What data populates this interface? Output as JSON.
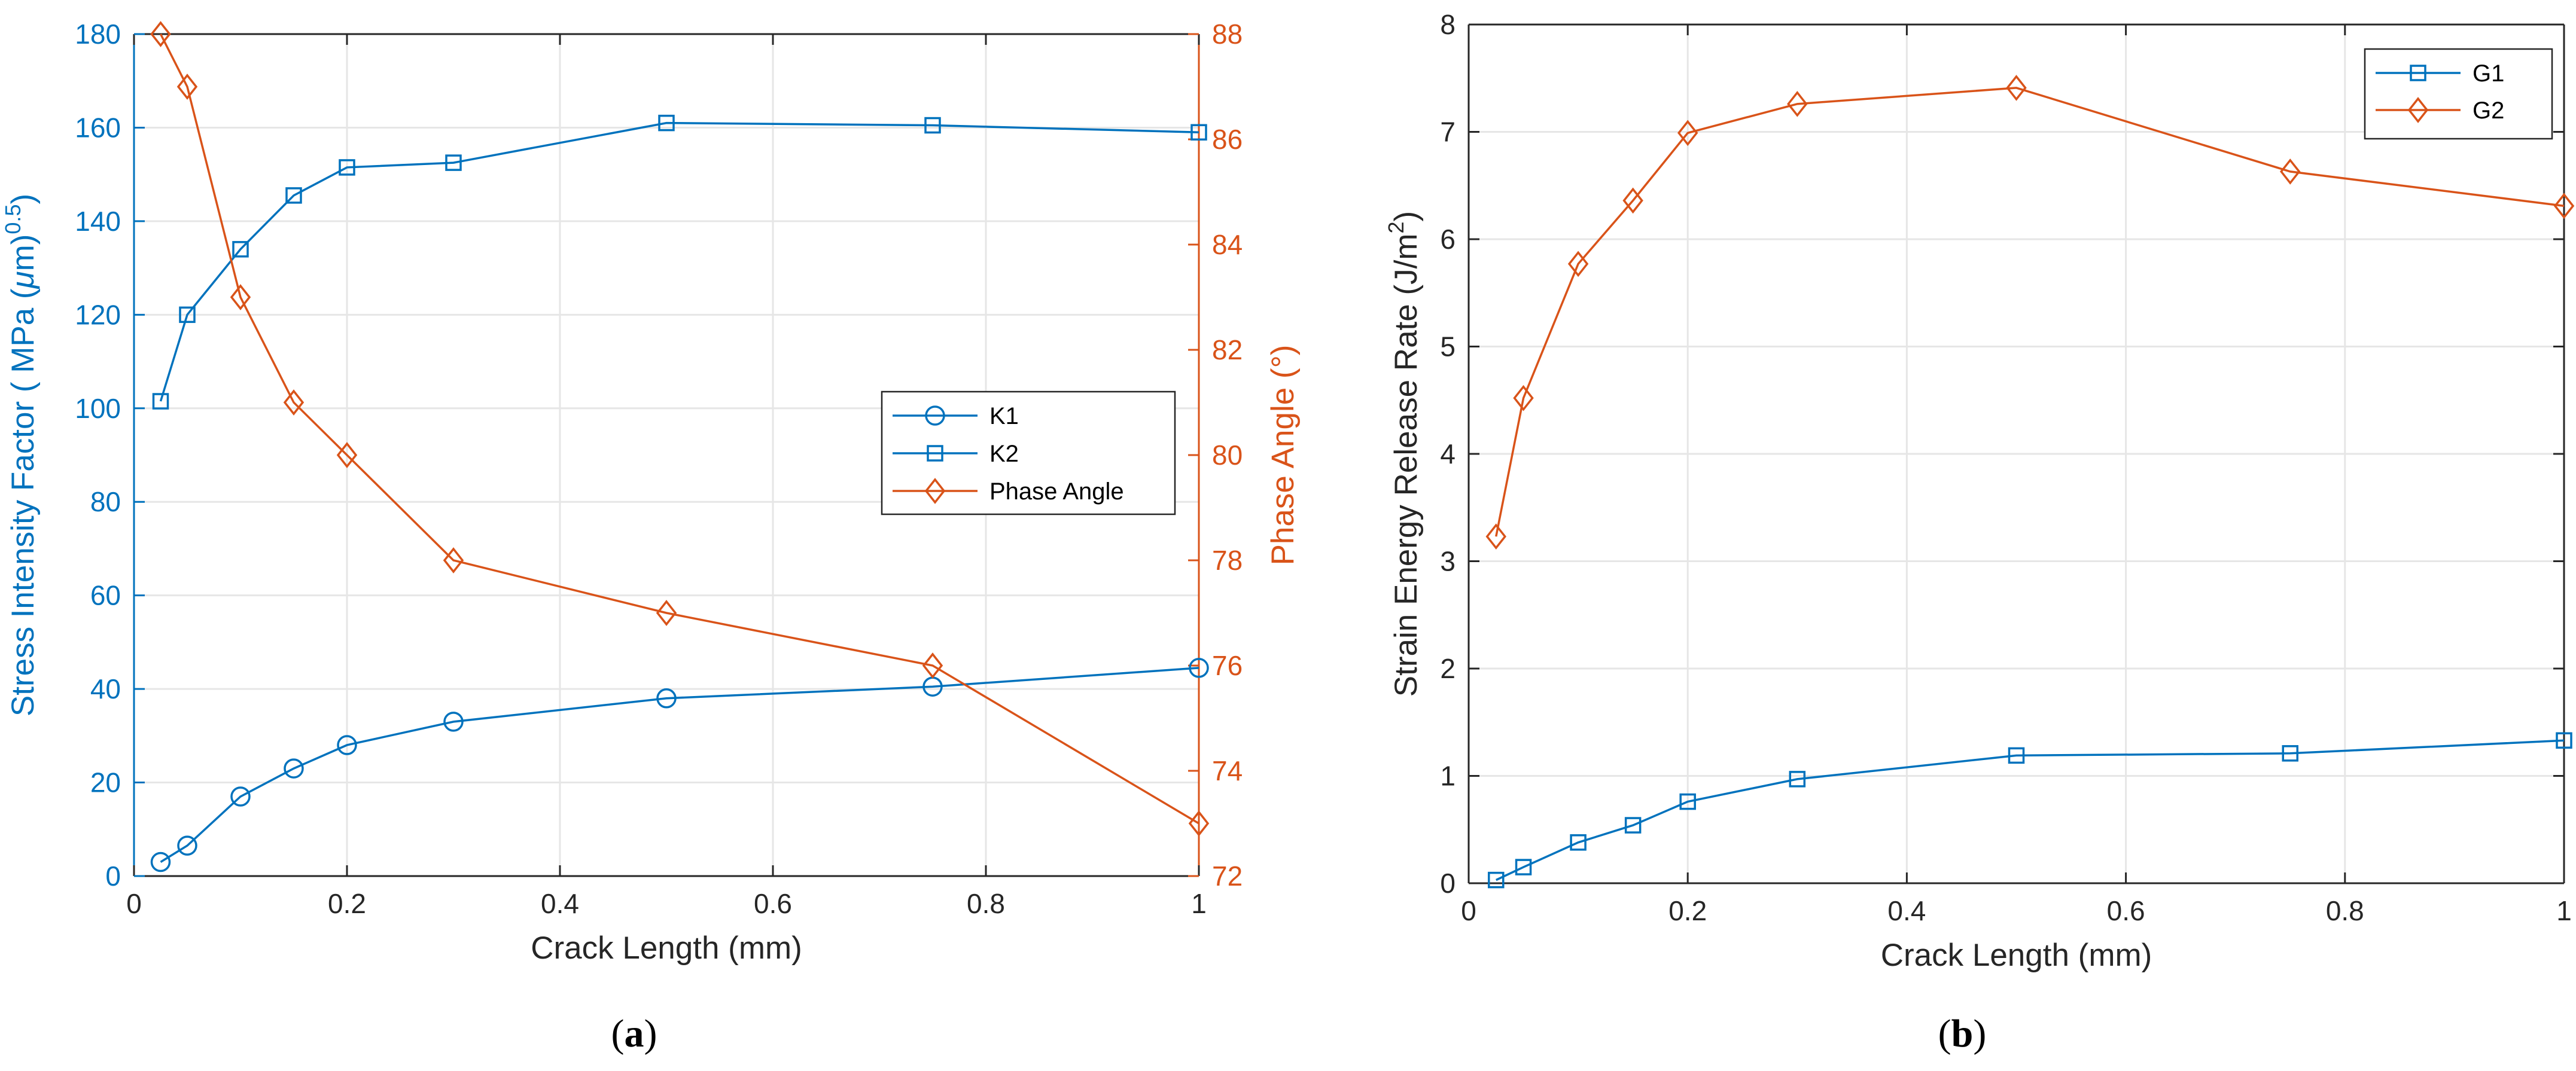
{
  "colors": {
    "blue": "#0072bd",
    "orange": "#d95319",
    "grid": "#e6e6e6",
    "axis": "#262626"
  },
  "chart_data": [
    {
      "id": "a",
      "caption": "(a)",
      "caption_letter": "a",
      "type": "line",
      "xlabel": "Crack Length (mm)",
      "ylabel": "Stress Intensity Factor ( MPa (μm)^0.5)",
      "ylabel_parts": [
        "Stress Intensity Factor ( MPa (",
        "μ",
        "m)",
        "0.5",
        ")"
      ],
      "ylabel_right": "Phase Angle (°)",
      "xlim": [
        0,
        1
      ],
      "ylim": [
        0,
        180
      ],
      "ylim_right": [
        72,
        88
      ],
      "xticks": [
        0,
        0.2,
        0.4,
        0.6,
        0.8,
        1
      ],
      "xtick_labels": [
        "0",
        "0.2",
        "0.4",
        "0.6",
        "0.8",
        "1"
      ],
      "yticks": [
        0,
        20,
        40,
        60,
        80,
        100,
        120,
        140,
        160,
        180
      ],
      "ytick_labels": [
        "0",
        "20",
        "40",
        "60",
        "80",
        "100",
        "120",
        "140",
        "160",
        "180"
      ],
      "yticks_right": [
        72,
        74,
        76,
        78,
        80,
        82,
        84,
        86,
        88
      ],
      "ytick_labels_right": [
        "72",
        "74",
        "76",
        "78",
        "80",
        "82",
        "84",
        "86",
        "88"
      ],
      "grid": true,
      "legend_position": "center-right",
      "x": [
        0.025,
        0.05,
        0.1,
        0.15,
        0.2,
        0.3,
        0.5,
        0.75,
        1.0
      ],
      "series": [
        {
          "name": "K1",
          "axis": "left",
          "color": "#0072bd",
          "marker": "circle",
          "values": [
            3,
            6.5,
            17,
            23,
            28,
            33,
            38,
            40.5,
            44.5
          ]
        },
        {
          "name": "K2",
          "axis": "left",
          "color": "#0072bd",
          "marker": "square",
          "values": [
            101.5,
            120,
            134,
            145.5,
            151.5,
            152.5,
            161,
            160.5,
            159
          ]
        },
        {
          "name": "Phase Angle",
          "axis": "right",
          "color": "#d95319",
          "marker": "diamond",
          "values": [
            88,
            87,
            83,
            81,
            80,
            78,
            77,
            76,
            73
          ]
        }
      ]
    },
    {
      "id": "b",
      "caption": "(b)",
      "caption_letter": "b",
      "type": "line",
      "xlabel": "Crack Length (mm)",
      "ylabel": "Strain Energy Release Rate (J/m^2)",
      "ylabel_parts": [
        "Strain Energy Release Rate (J/m",
        "2",
        ")"
      ],
      "xlim": [
        0,
        1
      ],
      "ylim": [
        0,
        8
      ],
      "xticks": [
        0,
        0.2,
        0.4,
        0.6,
        0.8,
        1
      ],
      "xtick_labels": [
        "0",
        "0.2",
        "0.4",
        "0.6",
        "0.8",
        "1"
      ],
      "yticks": [
        0,
        1,
        2,
        3,
        4,
        5,
        6,
        7,
        8
      ],
      "ytick_labels": [
        "0",
        "1",
        "2",
        "3",
        "4",
        "5",
        "6",
        "7",
        "8"
      ],
      "grid": true,
      "legend_position": "top-right",
      "x": [
        0.025,
        0.05,
        0.1,
        0.15,
        0.2,
        0.3,
        0.5,
        0.75,
        1.0
      ],
      "series": [
        {
          "name": "G1",
          "axis": "left",
          "color": "#0072bd",
          "marker": "square",
          "values": [
            0.03,
            0.15,
            0.38,
            0.54,
            0.76,
            0.97,
            1.19,
            1.21,
            1.33
          ]
        },
        {
          "name": "G2",
          "axis": "left",
          "color": "#d95319",
          "marker": "diamond",
          "values": [
            3.23,
            4.52,
            5.77,
            6.36,
            6.99,
            7.26,
            7.41,
            6.63,
            6.31
          ]
        }
      ]
    }
  ]
}
